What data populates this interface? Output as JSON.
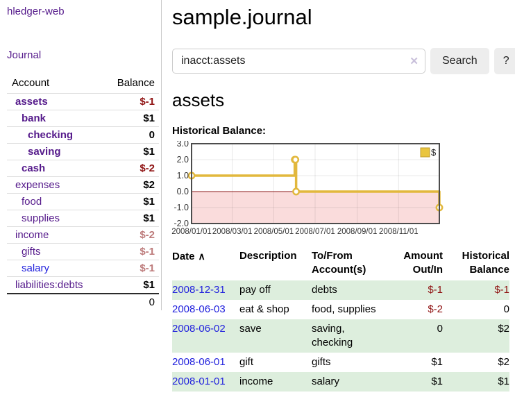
{
  "app": {
    "title": "hledger-web",
    "nav_journal": "Journal"
  },
  "sidebar": {
    "columns": {
      "account": "Account",
      "balance": "Balance"
    },
    "accounts": [
      {
        "name": "assets",
        "depth": 1,
        "balance": "$-1",
        "bold": true,
        "negative": true,
        "muted": false,
        "unvisited": false
      },
      {
        "name": "bank",
        "depth": 2,
        "balance": "$1",
        "bold": true,
        "negative": false,
        "muted": false,
        "unvisited": false
      },
      {
        "name": "checking",
        "depth": 3,
        "balance": "0",
        "bold": true,
        "negative": false,
        "muted": false,
        "unvisited": false
      },
      {
        "name": "saving",
        "depth": 3,
        "balance": "$1",
        "bold": true,
        "negative": false,
        "muted": false,
        "unvisited": false
      },
      {
        "name": "cash",
        "depth": 2,
        "balance": "$-2",
        "bold": true,
        "negative": true,
        "muted": false,
        "unvisited": false
      },
      {
        "name": "expenses",
        "depth": 1,
        "balance": "$2",
        "bold": false,
        "negative": false,
        "muted": false,
        "unvisited": false
      },
      {
        "name": "food",
        "depth": 2,
        "balance": "$1",
        "bold": false,
        "negative": false,
        "muted": false,
        "unvisited": false
      },
      {
        "name": "supplies",
        "depth": 2,
        "balance": "$1",
        "bold": false,
        "negative": false,
        "muted": false,
        "unvisited": false
      },
      {
        "name": "income",
        "depth": 1,
        "balance": "$-2",
        "bold": false,
        "negative": true,
        "muted": true,
        "unvisited": false
      },
      {
        "name": "gifts",
        "depth": 2,
        "balance": "$-1",
        "bold": false,
        "negative": true,
        "muted": true,
        "unvisited": false
      },
      {
        "name": "salary",
        "depth": 2,
        "balance": "$-1",
        "bold": false,
        "negative": true,
        "muted": true,
        "unvisited": true
      },
      {
        "name": "liabilities:debts",
        "depth": 1,
        "balance": "$1",
        "bold": false,
        "negative": false,
        "muted": false,
        "unvisited": false
      }
    ],
    "total": "0"
  },
  "header": {
    "title": "sample.journal"
  },
  "search": {
    "value": "inacct:assets",
    "clear_icon": "✕",
    "button": "Search",
    "help_button": "?"
  },
  "account_page": {
    "heading": "assets",
    "chart_label": "Historical Balance:"
  },
  "chart_data": {
    "type": "line",
    "title": "Historical Balance:",
    "step": true,
    "series": [
      {
        "name": "$",
        "color": "#e2b83d",
        "points": [
          [
            "2008-01-01",
            1
          ],
          [
            "2008-06-01",
            2
          ],
          [
            "2008-06-02",
            2
          ],
          [
            "2008-06-03",
            0
          ],
          [
            "2008-12-31",
            -1
          ]
        ]
      }
    ],
    "ylim": [
      -2.0,
      3.0
    ],
    "yticks": [
      3.0,
      2.0,
      1.0,
      0.0,
      -1.0,
      -2.0
    ],
    "xticks": [
      "2008/01/01",
      "2008/03/01",
      "2008/05/01",
      "2008/07/01",
      "2008/09/01",
      "2008/11/01"
    ],
    "grid": true,
    "legend": {
      "label": "$",
      "position": "top-right"
    },
    "negative_zone_fill": "#fadcdc",
    "zero_line_color": "#8b1a1a",
    "border_color": "#4c4c4c",
    "marker_fill": "#ffffff"
  },
  "register": {
    "columns": [
      "Date",
      "Description",
      "To/From Account(s)",
      "Amount Out/In",
      "Historical Balance"
    ],
    "sort_icon": "∧",
    "rows": [
      {
        "date": "2008-12-31",
        "description": "pay off",
        "accounts": "debts",
        "amount": "$-1",
        "balance": "$-1",
        "amount_negative": true,
        "balance_negative": true
      },
      {
        "date": "2008-06-03",
        "description": "eat & shop",
        "accounts": "food, supplies",
        "amount": "$-2",
        "balance": "0",
        "amount_negative": true,
        "balance_negative": false
      },
      {
        "date": "2008-06-02",
        "description": "save",
        "accounts": "saving, checking",
        "amount": "0",
        "balance": "$2",
        "amount_negative": false,
        "balance_negative": false
      },
      {
        "date": "2008-06-01",
        "description": "gift",
        "accounts": "gifts",
        "amount": "$1",
        "balance": "$2",
        "amount_negative": false,
        "balance_negative": false
      },
      {
        "date": "2008-01-01",
        "description": "income",
        "accounts": "salary",
        "amount": "$1",
        "balance": "$1",
        "amount_negative": false,
        "balance_negative": false
      }
    ]
  }
}
